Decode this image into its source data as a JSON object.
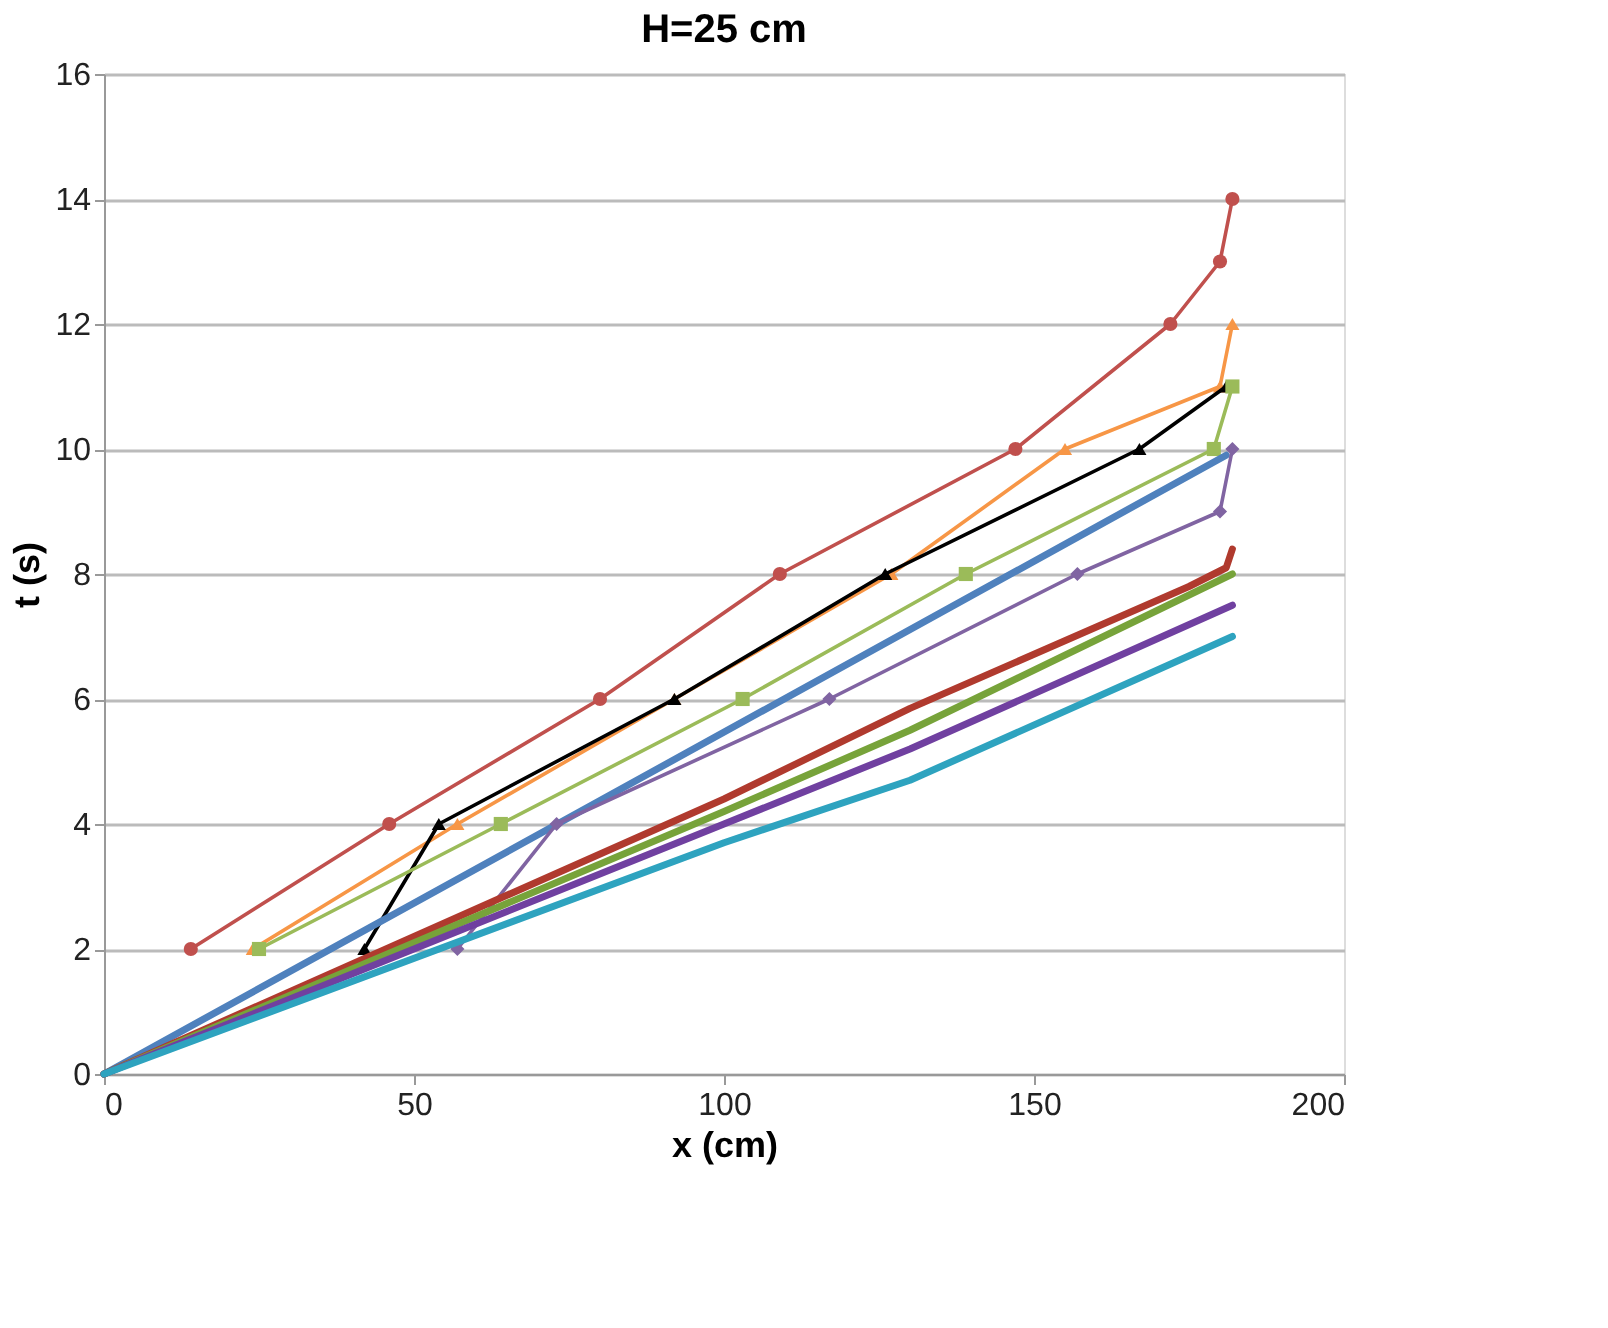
{
  "chart_data": {
    "type": "line",
    "title": "H=25 cm",
    "xlabel": "x (cm)",
    "ylabel": "t (s)",
    "xlim": [
      0,
      200
    ],
    "xticks": [
      0,
      50,
      100,
      150,
      200
    ],
    "ylim": [
      0,
      16
    ],
    "yticks": [
      0,
      2,
      4,
      6,
      8,
      10,
      12,
      14,
      16
    ],
    "grid": "y",
    "legend": false,
    "series": [
      {
        "color": "#c0504d",
        "marker": "circle",
        "x": [
          14,
          46,
          80,
          109,
          147,
          172,
          180,
          182
        ],
        "values": [
          2,
          4,
          6,
          8,
          10,
          12,
          13,
          14
        ]
      },
      {
        "color": "#f79646",
        "marker": "triangle",
        "x": [
          24,
          57,
          92,
          127,
          155,
          180,
          182
        ],
        "values": [
          2,
          4,
          6,
          8,
          10,
          11,
          12
        ]
      },
      {
        "color": "#000000",
        "marker": "triangle",
        "x": [
          42,
          54,
          92,
          126,
          167,
          181
        ],
        "values": [
          2,
          4,
          6,
          8,
          10,
          11
        ]
      },
      {
        "color": "#9bbb59",
        "marker": "square",
        "x": [
          25,
          64,
          103,
          139,
          179,
          182
        ],
        "values": [
          2,
          4,
          6,
          8,
          10,
          11
        ]
      },
      {
        "color": "#4f81bd",
        "marker": "none",
        "x": [
          0,
          181
        ],
        "values": [
          0,
          9.9
        ]
      },
      {
        "color": "#8064a2",
        "marker": "diamond",
        "x": [
          57,
          73,
          117,
          157,
          180,
          182
        ],
        "values": [
          2,
          4,
          6,
          8,
          9,
          10
        ]
      },
      {
        "color": "#b03a2e",
        "marker": "none",
        "x": [
          0,
          100,
          130,
          175,
          181,
          182
        ],
        "values": [
          0,
          4.4,
          5.85,
          7.8,
          8.1,
          8.4
        ]
      },
      {
        "color": "#77a33a",
        "marker": "none",
        "x": [
          0,
          100,
          130,
          182
        ],
        "values": [
          0,
          4.2,
          5.5,
          8
        ]
      },
      {
        "color": "#7040a0",
        "marker": "none",
        "x": [
          0,
          100,
          130,
          182
        ],
        "values": [
          0,
          4.0,
          5.2,
          7.5
        ]
      },
      {
        "color": "#2ea3bf",
        "marker": "none",
        "x": [
          0,
          100,
          130,
          182
        ],
        "values": [
          0,
          3.7,
          4.7,
          7
        ]
      }
    ]
  }
}
